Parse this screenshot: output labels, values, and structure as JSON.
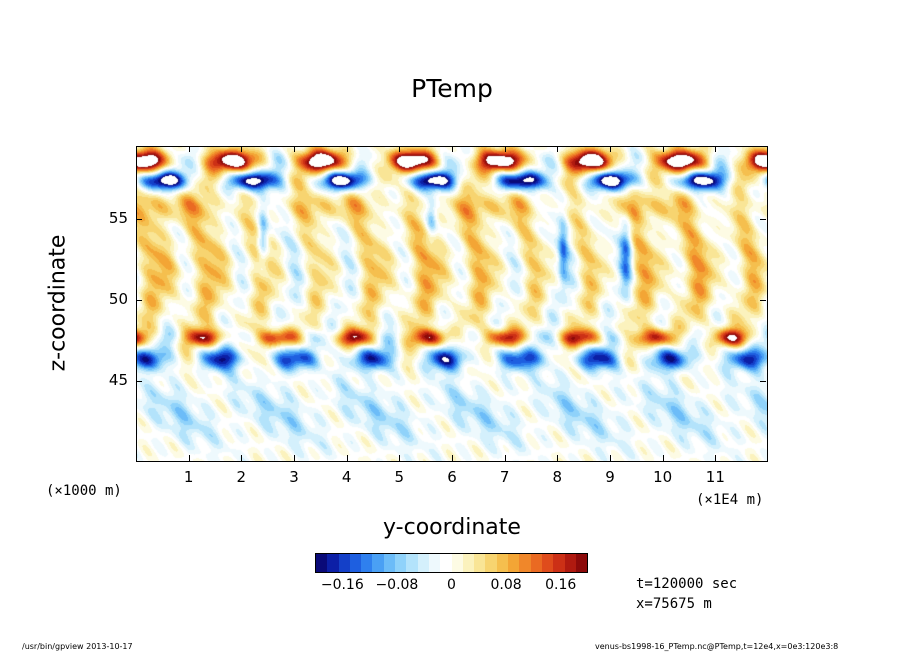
{
  "chart_data": {
    "type": "heatmap",
    "title": "PTemp",
    "xlabel": "y-coordinate",
    "ylabel": "z-coordinate",
    "x_unit_left": "(×1000 m)",
    "x_unit_right": "(×1E4 m)",
    "xlim": [
      0,
      12
    ],
    "ylim": [
      40,
      59.5
    ],
    "x_ticks": [
      "1",
      "2",
      "3",
      "4",
      "5",
      "6",
      "7",
      "8",
      "9",
      "10",
      "11"
    ],
    "y_ticks": [
      "45",
      "50",
      "55"
    ],
    "colorbar": {
      "ticks": [
        "−0.16",
        "−0.08",
        "0",
        "0.08",
        "0.16"
      ],
      "tick_values": [
        -0.16,
        -0.08,
        0,
        0.08,
        0.16
      ],
      "range": [
        -0.2,
        0.2
      ],
      "colors": [
        "#0a0a78",
        "#0c1fa6",
        "#1440c8",
        "#1e5fe0",
        "#2f80ee",
        "#4aa0f4",
        "#6cbcf8",
        "#8fd2fa",
        "#b3e3fb",
        "#d4f0fc",
        "#eef9fd",
        "#ffffff",
        "#fdfbe4",
        "#fbf2bd",
        "#f9e596",
        "#f7d470",
        "#f5bf4e",
        "#f3a535",
        "#f0872a",
        "#ea6a22",
        "#df4c1c",
        "#cc3016",
        "#b01a10",
        "#8c0a0a"
      ]
    }
  },
  "annotations": {
    "time": "t=120000 sec",
    "position": "x=75675 m"
  },
  "footer": {
    "left": "/usr/bin/gpview  2013-10-17",
    "right": "venus-bs1998-16_PTemp.nc@PTemp,t=12e4,x=0e3:120e3:8"
  }
}
